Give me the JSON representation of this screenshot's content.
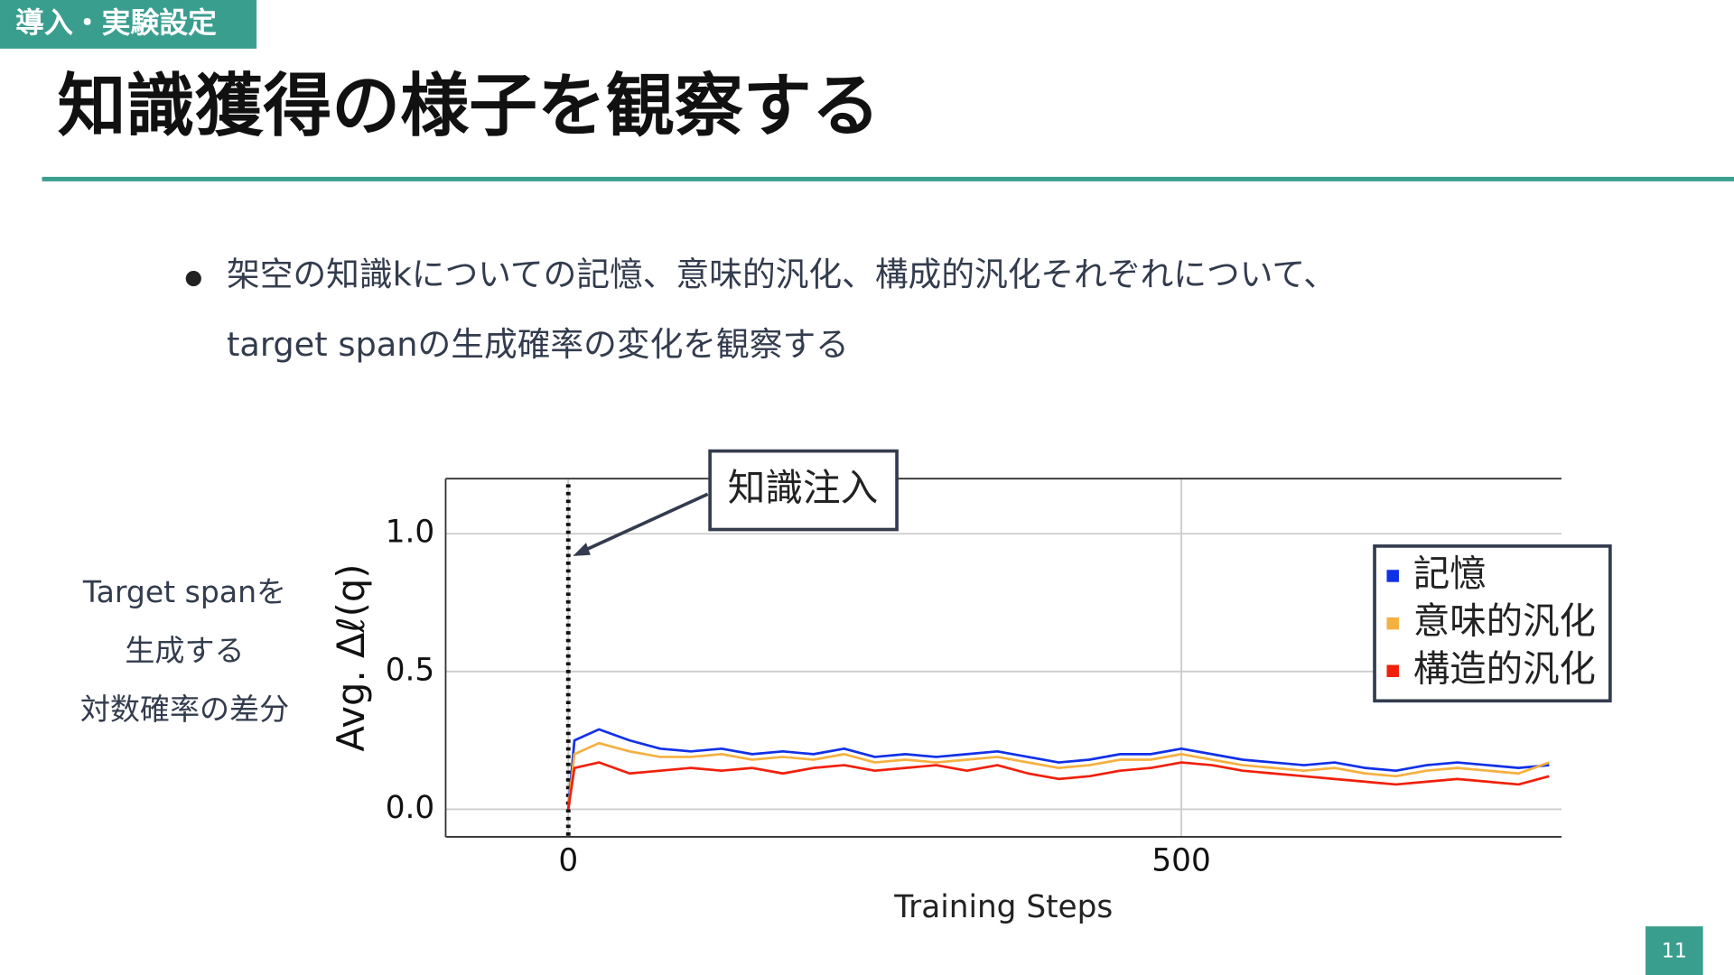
{
  "tag": "導入・実験設定",
  "title": "知識獲得の様子を観察する",
  "bullet": [
    "架空の知識kについての記憶、意味的汎化、構成的汎化それぞれについて、",
    "target spanの生成確率の変化を観察する"
  ],
  "side_label": [
    "Target spanを",
    "生成する",
    "対数確率の差分"
  ],
  "page_number": "11",
  "chart_data": {
    "type": "line",
    "xlabel": "Training Steps",
    "ylabel": "Avg. Δℓ(q)",
    "annotation": "知識注入",
    "vline": 0,
    "x": [
      0,
      5,
      25,
      50,
      75,
      100,
      125,
      150,
      175,
      200,
      225,
      250,
      275,
      300,
      325,
      350,
      375,
      400,
      425,
      450,
      475,
      500,
      525,
      550,
      575,
      600,
      625,
      650,
      675,
      700,
      725,
      750,
      775,
      800
    ],
    "series": [
      {
        "name": "記憶",
        "color": "#1030e8",
        "values": [
          0,
          0.25,
          0.29,
          0.25,
          0.22,
          0.21,
          0.22,
          0.2,
          0.21,
          0.2,
          0.22,
          0.19,
          0.2,
          0.19,
          0.2,
          0.21,
          0.19,
          0.17,
          0.18,
          0.2,
          0.2,
          0.22,
          0.2,
          0.18,
          0.17,
          0.16,
          0.17,
          0.15,
          0.14,
          0.16,
          0.17,
          0.16,
          0.15,
          0.16
        ]
      },
      {
        "name": "意味的汎化",
        "color": "#f4b040",
        "values": [
          0,
          0.2,
          0.24,
          0.21,
          0.19,
          0.19,
          0.2,
          0.18,
          0.19,
          0.18,
          0.2,
          0.17,
          0.18,
          0.17,
          0.18,
          0.19,
          0.17,
          0.15,
          0.16,
          0.18,
          0.18,
          0.2,
          0.18,
          0.16,
          0.15,
          0.14,
          0.15,
          0.13,
          0.12,
          0.14,
          0.15,
          0.14,
          0.13,
          0.17
        ]
      },
      {
        "name": "構造的汎化",
        "color": "#f0200a",
        "values": [
          0,
          0.15,
          0.17,
          0.13,
          0.14,
          0.15,
          0.14,
          0.15,
          0.13,
          0.15,
          0.16,
          0.14,
          0.15,
          0.16,
          0.14,
          0.16,
          0.13,
          0.11,
          0.12,
          0.14,
          0.15,
          0.17,
          0.16,
          0.14,
          0.13,
          0.12,
          0.11,
          0.1,
          0.09,
          0.1,
          0.11,
          0.1,
          0.09,
          0.12
        ]
      }
    ],
    "xlim": [
      -100,
      810
    ],
    "ylim": [
      -0.1,
      1.2
    ],
    "xticks": [
      0,
      500
    ],
    "yticks": [
      {
        "value": 0,
        "label": "0.0"
      },
      0.5,
      {
        "value": 1,
        "label": "1.0"
      }
    ],
    "grid": true,
    "legend": "upper right"
  }
}
